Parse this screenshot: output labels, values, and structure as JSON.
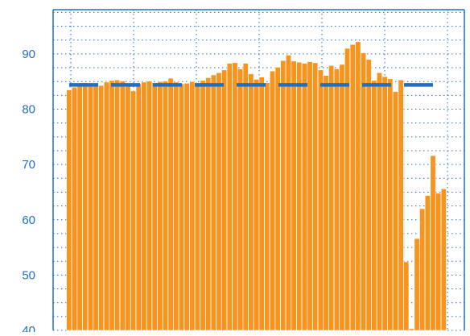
{
  "colors": {
    "bar": "#f7941d",
    "bar_edge": "#ffffff",
    "line": "#1f6fc5",
    "axis": "#1f6fc5",
    "tick_label": "#1f6fc5",
    "grid": "#1f6fc5",
    "background": "#ffffff"
  },
  "chart_data": {
    "type": "bar",
    "title": "",
    "xlabel": "",
    "ylabel": "",
    "ylim": [
      40,
      98
    ],
    "yticks": [
      40,
      50,
      60,
      70,
      80,
      90
    ],
    "ytick_labels": [
      "40",
      "50",
      "60",
      "70",
      "80",
      "90"
    ],
    "grid": true,
    "legend": "none",
    "series": [
      {
        "type": "bar",
        "values": [
          83.5,
          84.0,
          84.5,
          84.8,
          84.2,
          84.6,
          84.3,
          84.9,
          85.2,
          85.3,
          85.1,
          84.2,
          83.3,
          84.6,
          84.9,
          85.1,
          84.8,
          85.0,
          85.1,
          85.6,
          84.9,
          84.6,
          84.7,
          85.0,
          84.8,
          85.2,
          85.7,
          86.2,
          86.6,
          87.1,
          88.3,
          88.4,
          87.3,
          88.3,
          86.4,
          85.4,
          85.8,
          84.8,
          86.9,
          87.6,
          88.8,
          89.8,
          88.7,
          88.5,
          88.3,
          88.6,
          88.4,
          87.1,
          86.1,
          87.9,
          87.3,
          88.1,
          91.0,
          91.7,
          92.2,
          90.2,
          89.0,
          85.2,
          86.6,
          85.9,
          85.5,
          83.2,
          85.3,
          52.4,
          40.3,
          56.6,
          62.0,
          64.4,
          71.6,
          64.8,
          65.6
        ]
      },
      {
        "type": "line",
        "style": "dashed",
        "value": 84.4
      }
    ]
  }
}
